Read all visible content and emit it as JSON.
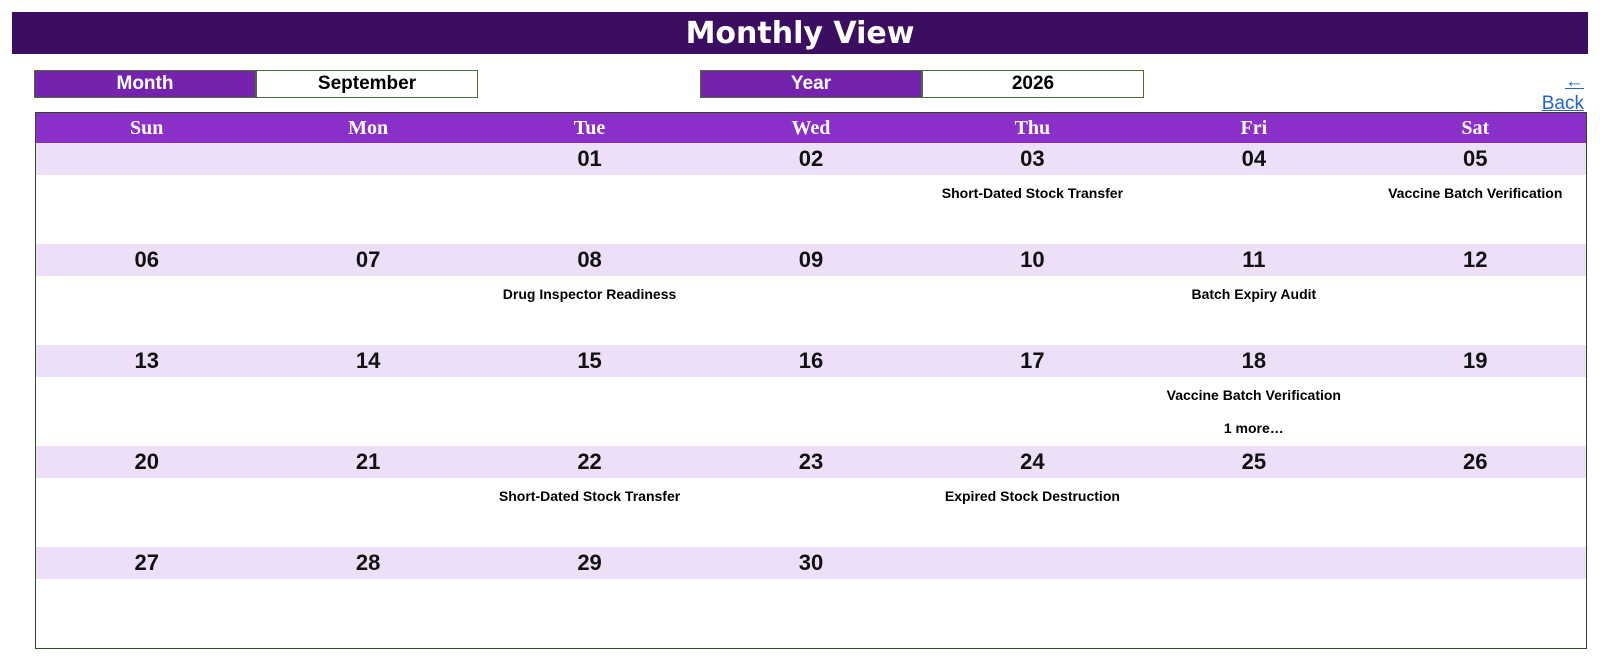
{
  "title": "Monthly View",
  "controls": {
    "month_label": "Month",
    "month_value": "September",
    "year_label": "Year",
    "year_value": "2026",
    "back_label": "← Back"
  },
  "weekdays": [
    "Sun",
    "Mon",
    "Tue",
    "Wed",
    "Thu",
    "Fri",
    "Sat"
  ],
  "weeks": [
    [
      {
        "date": "",
        "events": [],
        "more": ""
      },
      {
        "date": "",
        "events": [],
        "more": ""
      },
      {
        "date": "01",
        "events": [],
        "more": ""
      },
      {
        "date": "02",
        "events": [],
        "more": ""
      },
      {
        "date": "03",
        "events": [
          "Short-Dated Stock Transfer"
        ],
        "more": ""
      },
      {
        "date": "04",
        "events": [],
        "more": ""
      },
      {
        "date": "05",
        "events": [
          "Vaccine Batch Verification"
        ],
        "more": ""
      }
    ],
    [
      {
        "date": "06",
        "events": [],
        "more": ""
      },
      {
        "date": "07",
        "events": [],
        "more": ""
      },
      {
        "date": "08",
        "events": [
          "Drug Inspector Readiness"
        ],
        "more": ""
      },
      {
        "date": "09",
        "events": [],
        "more": ""
      },
      {
        "date": "10",
        "events": [],
        "more": ""
      },
      {
        "date": "11",
        "events": [
          "Batch Expiry Audit"
        ],
        "more": ""
      },
      {
        "date": "12",
        "events": [],
        "more": ""
      }
    ],
    [
      {
        "date": "13",
        "events": [],
        "more": ""
      },
      {
        "date": "14",
        "events": [],
        "more": ""
      },
      {
        "date": "15",
        "events": [],
        "more": ""
      },
      {
        "date": "16",
        "events": [],
        "more": ""
      },
      {
        "date": "17",
        "events": [],
        "more": ""
      },
      {
        "date": "18",
        "events": [
          "Vaccine Batch Verification"
        ],
        "more": "1 more…"
      },
      {
        "date": "19",
        "events": [],
        "more": ""
      }
    ],
    [
      {
        "date": "20",
        "events": [],
        "more": ""
      },
      {
        "date": "21",
        "events": [],
        "more": ""
      },
      {
        "date": "22",
        "events": [
          "Short-Dated Stock Transfer"
        ],
        "more": ""
      },
      {
        "date": "23",
        "events": [],
        "more": ""
      },
      {
        "date": "24",
        "events": [
          "Expired Stock Destruction"
        ],
        "more": ""
      },
      {
        "date": "25",
        "events": [],
        "more": ""
      },
      {
        "date": "26",
        "events": [],
        "more": ""
      }
    ],
    [
      {
        "date": "27",
        "events": [],
        "more": ""
      },
      {
        "date": "28",
        "events": [],
        "more": ""
      },
      {
        "date": "29",
        "events": [],
        "more": ""
      },
      {
        "date": "30",
        "events": [],
        "more": ""
      },
      {
        "date": "",
        "events": [],
        "more": ""
      },
      {
        "date": "",
        "events": [],
        "more": ""
      },
      {
        "date": "",
        "events": [],
        "more": ""
      }
    ]
  ]
}
